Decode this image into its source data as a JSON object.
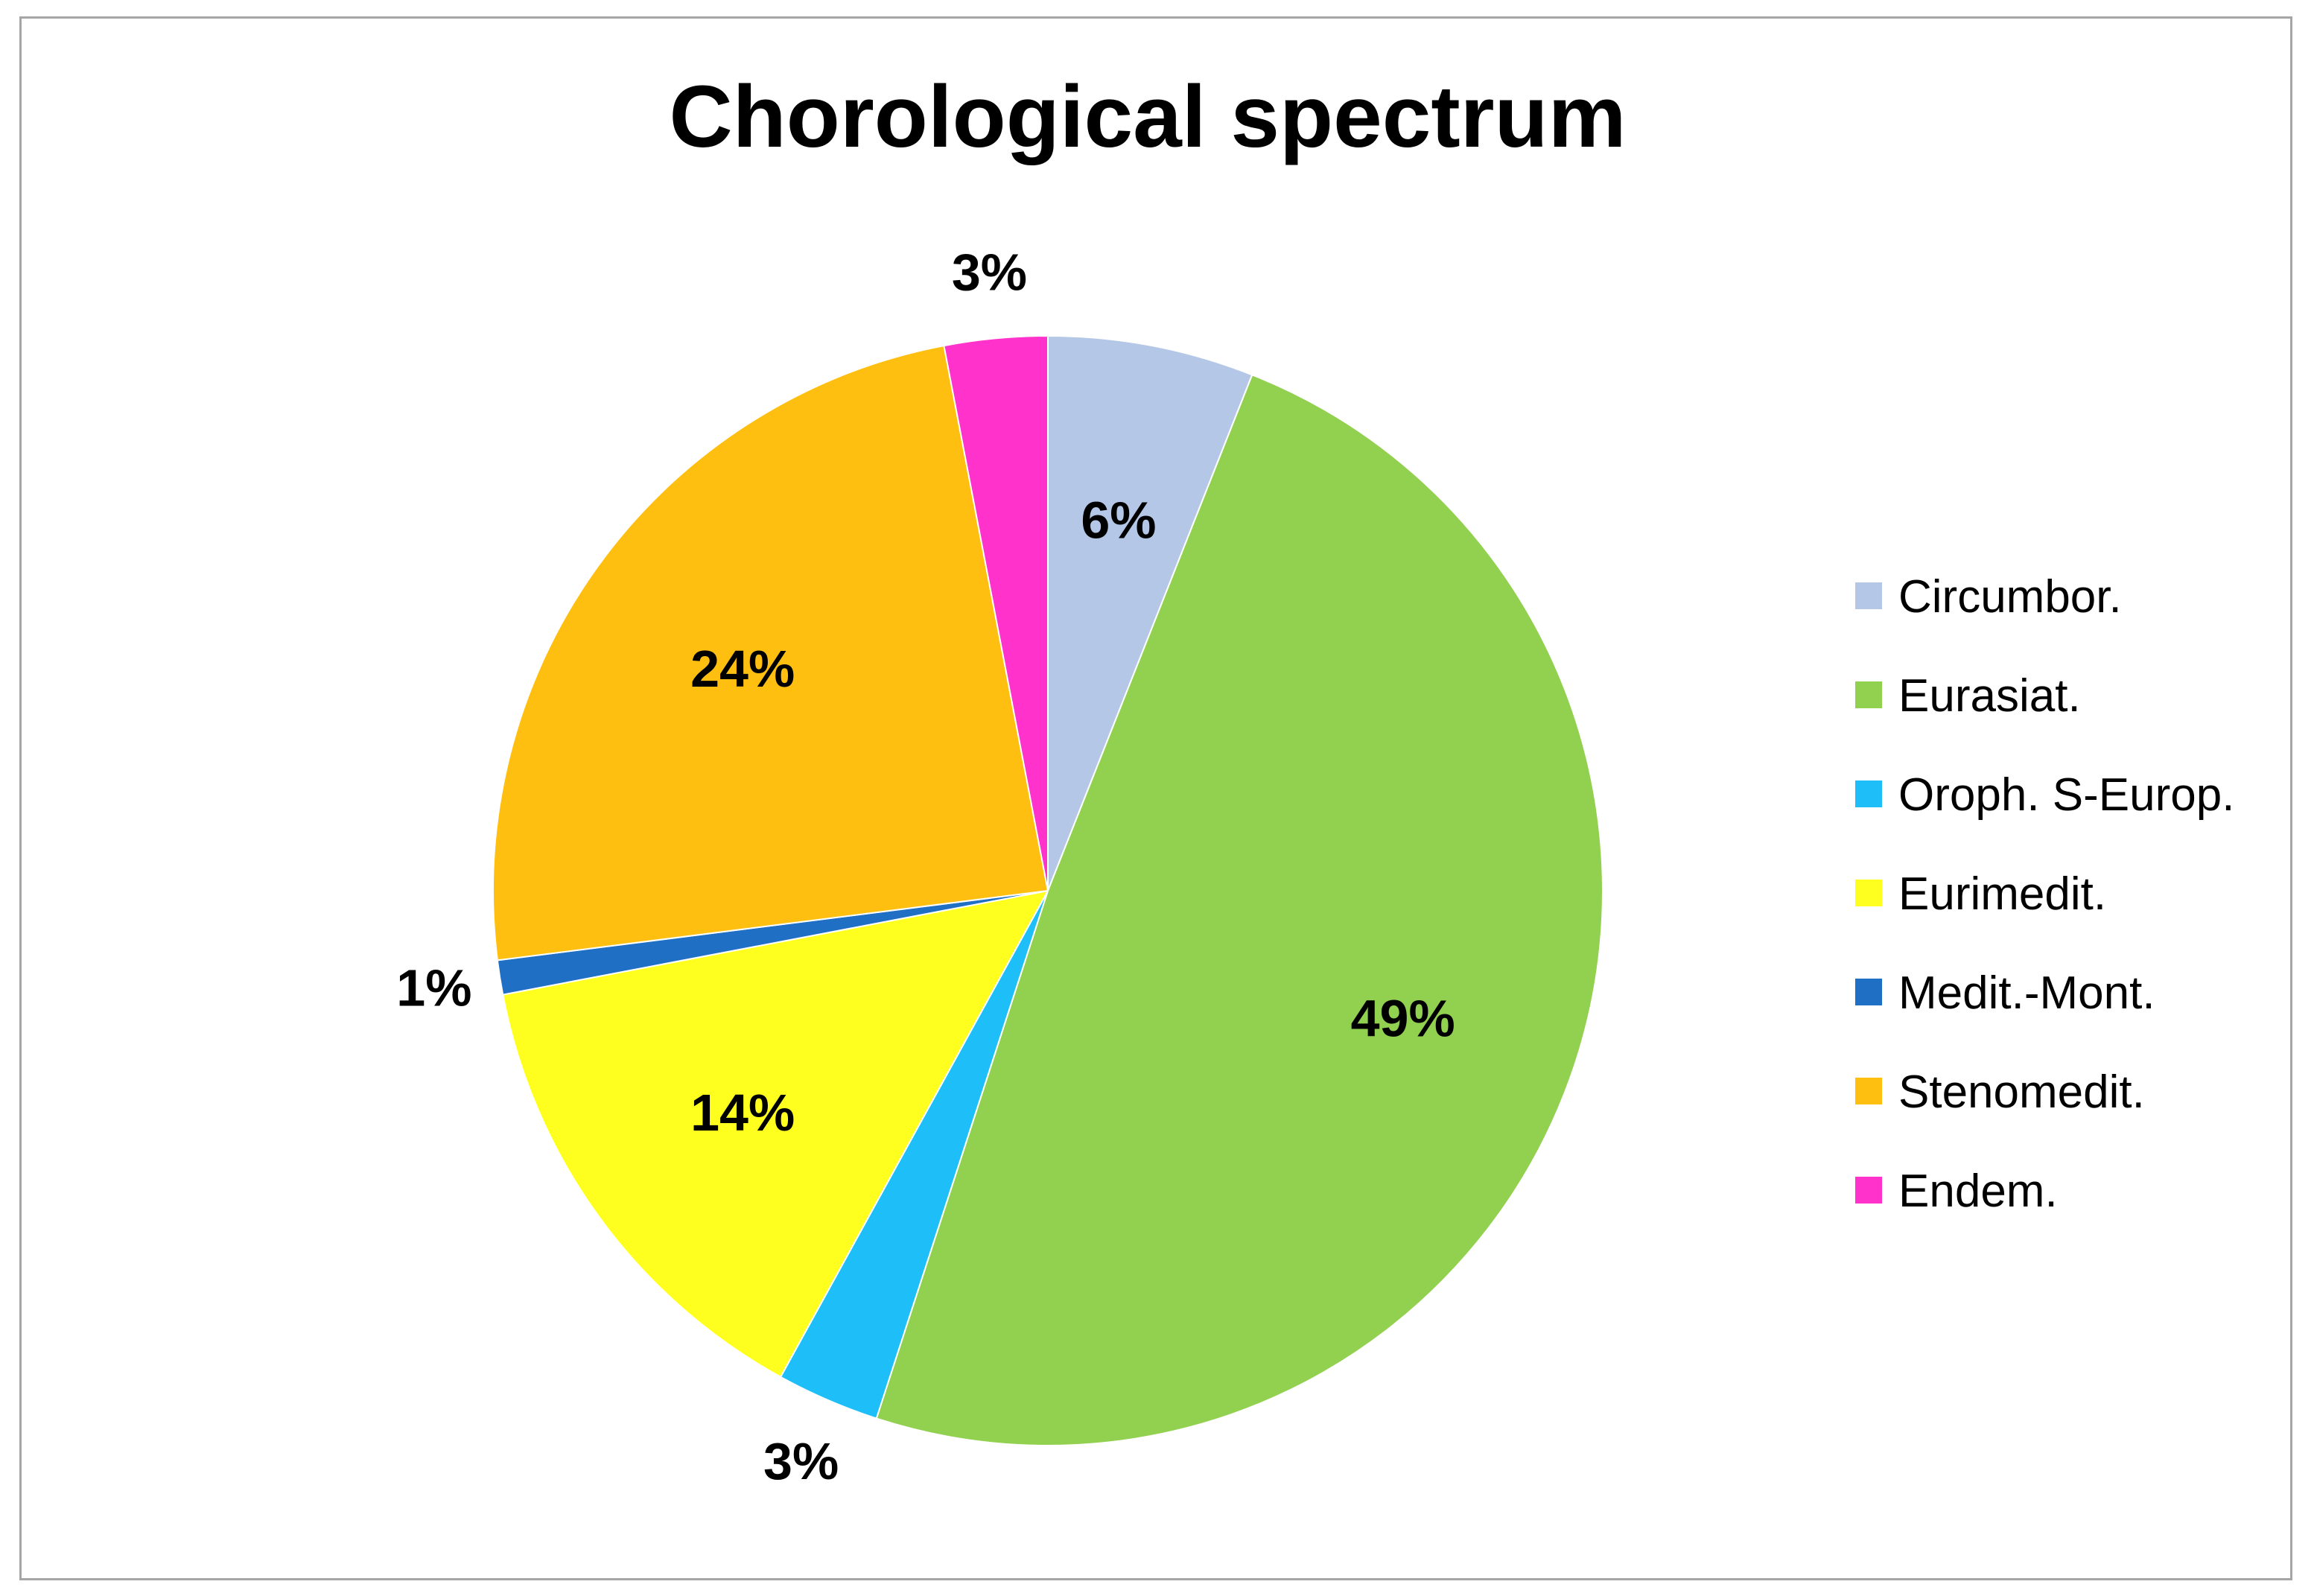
{
  "chart_data": {
    "type": "pie",
    "title": "Chorological spectrum",
    "categories": [
      "Circumbor.",
      "Eurasiat.",
      "Oroph. S-Europ.",
      "Eurimedit.",
      "Medit.-Mont.",
      "Stenomedit.",
      "Endem."
    ],
    "values": [
      6,
      49,
      3,
      14,
      1,
      24,
      3
    ],
    "labels": [
      "6%",
      "49%",
      "3%",
      "14%",
      "1%",
      "24%",
      "3%"
    ],
    "colors": [
      "#b4c7e7",
      "#92d050",
      "#1ebff8",
      "#ffff1f",
      "#1f6fc4",
      "#ffbf10",
      "#ff33cc"
    ],
    "start_angle": "12 o'clock",
    "direction": "clockwise",
    "legend": "right"
  }
}
